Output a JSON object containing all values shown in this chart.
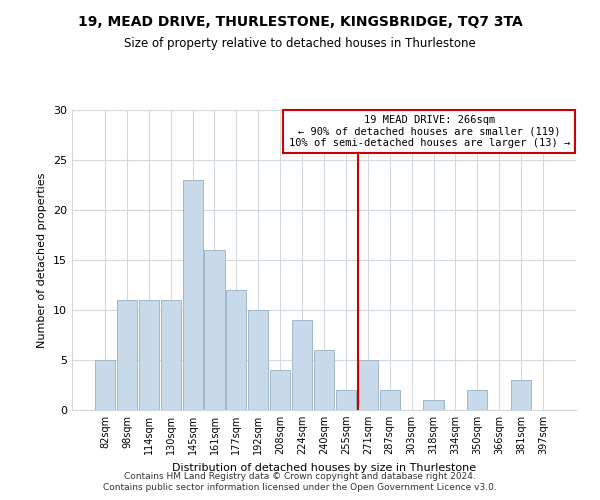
{
  "title": "19, MEAD DRIVE, THURLESTONE, KINGSBRIDGE, TQ7 3TA",
  "subtitle": "Size of property relative to detached houses in Thurlestone",
  "xlabel": "Distribution of detached houses by size in Thurlestone",
  "ylabel": "Number of detached properties",
  "categories": [
    "82sqm",
    "98sqm",
    "114sqm",
    "130sqm",
    "145sqm",
    "161sqm",
    "177sqm",
    "192sqm",
    "208sqm",
    "224sqm",
    "240sqm",
    "255sqm",
    "271sqm",
    "287sqm",
    "303sqm",
    "318sqm",
    "334sqm",
    "350sqm",
    "366sqm",
    "381sqm",
    "397sqm"
  ],
  "values": [
    5,
    11,
    11,
    11,
    23,
    16,
    12,
    10,
    4,
    9,
    6,
    2,
    5,
    2,
    0,
    1,
    0,
    2,
    0,
    3,
    0
  ],
  "bar_color": "#c8d9ea",
  "bar_edge_color": "#a0b8cc",
  "reference_line_x": 12,
  "reference_line_color": "#cc0000",
  "annotation_line1": "19 MEAD DRIVE: 266sqm",
  "annotation_line2": "← 90% of detached houses are smaller (119)",
  "annotation_line3": "10% of semi-detached houses are larger (13) →",
  "annotation_box_color": "#ffffff",
  "annotation_box_edge": "#cc0000",
  "ylim": [
    0,
    30
  ],
  "yticks": [
    0,
    5,
    10,
    15,
    20,
    25,
    30
  ],
  "footer1": "Contains HM Land Registry data © Crown copyright and database right 2024.",
  "footer2": "Contains public sector information licensed under the Open Government Licence v3.0.",
  "bg_color": "#ffffff",
  "grid_color": "#d0d8e0"
}
